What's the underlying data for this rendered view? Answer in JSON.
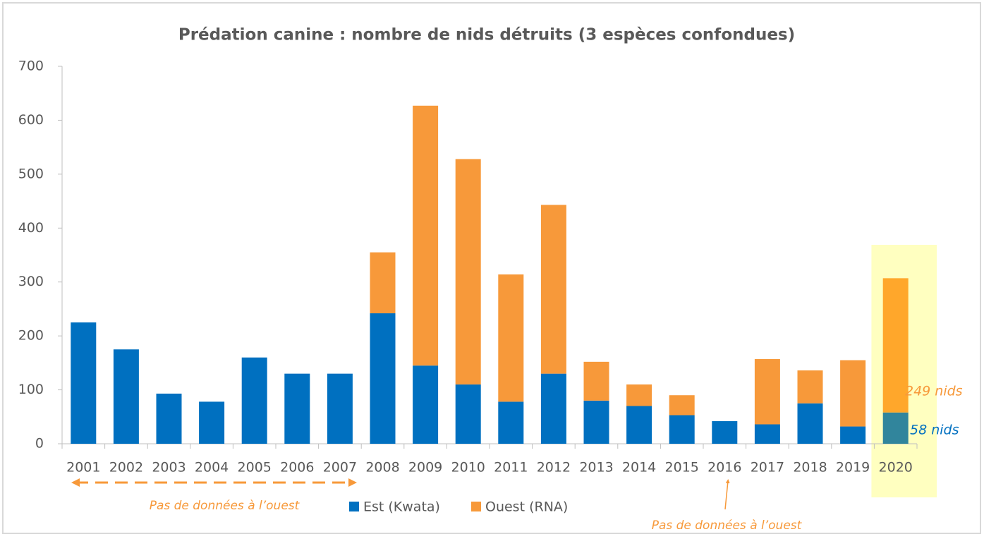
{
  "chart_data": {
    "type": "stacked_bar",
    "title": "Prédation canine : nombre de nids détruits (3 espèces confondues)",
    "categories": [
      "2001",
      "2002",
      "2003",
      "2004",
      "2005",
      "2006",
      "2007",
      "2008",
      "2009",
      "2010",
      "2011",
      "2012",
      "2013",
      "2014",
      "2015",
      "2016",
      "2017",
      "2018",
      "2019",
      "2020"
    ],
    "series": [
      {
        "name": "Est (Kwata)",
        "color": "#0070c0",
        "highlight_color": "#31859c",
        "values": [
          225,
          175,
          93,
          78,
          160,
          130,
          130,
          242,
          145,
          110,
          78,
          130,
          80,
          70,
          53,
          42,
          36,
          75,
          32,
          58
        ]
      },
      {
        "name": "Ouest (RNA)",
        "color": "#f7993a",
        "highlight_color": "#ffa72b",
        "values": [
          0,
          0,
          0,
          0,
          0,
          0,
          0,
          113,
          482,
          418,
          236,
          313,
          72,
          40,
          37,
          0,
          121,
          61,
          123,
          249
        ]
      }
    ],
    "highlight_category": "2020",
    "highlight_color": "#ffffc0",
    "value_annotations": [
      {
        "text": "249 nids",
        "series": 1
      },
      {
        "text": "58 nids",
        "series": 0
      }
    ],
    "notes": [
      "Pas de données à l’ouest",
      "Pas de données à l’ouest"
    ],
    "ylim": [
      0,
      700
    ],
    "yticks": [
      0,
      100,
      200,
      300,
      400,
      500,
      600,
      700
    ],
    "grid": false,
    "legend": "bottom"
  }
}
